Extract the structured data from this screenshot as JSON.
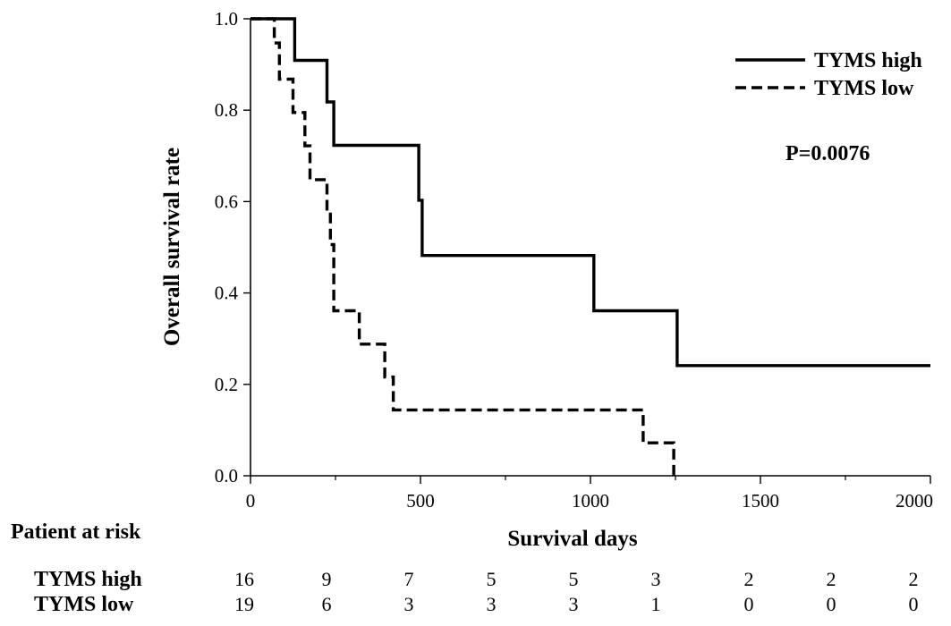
{
  "chart_data": {
    "type": "line",
    "subtype": "kaplan-meier",
    "xlabel": "Survival days",
    "ylabel": "Overall survival rate",
    "xlim": [
      0,
      2000
    ],
    "ylim": [
      0.0,
      1.0
    ],
    "xticks": [
      0,
      500,
      1000,
      1500,
      2000
    ],
    "yticks": [
      "0.0",
      "0.2",
      "0.4",
      "0.6",
      "0.8",
      "1.0"
    ],
    "grid": false,
    "legend_position": "top-right",
    "annotation": "P=0.0076",
    "series": [
      {
        "name": "TYMS high",
        "line_style": "solid",
        "color": "#000000",
        "points": [
          [
            0,
            1.0
          ],
          [
            130,
            1.0
          ],
          [
            130,
            0.909
          ],
          [
            225,
            0.909
          ],
          [
            225,
            0.818
          ],
          [
            245,
            0.818
          ],
          [
            245,
            0.723
          ],
          [
            495,
            0.723
          ],
          [
            495,
            0.603
          ],
          [
            505,
            0.603
          ],
          [
            505,
            0.482
          ],
          [
            1010,
            0.482
          ],
          [
            1010,
            0.361
          ],
          [
            1255,
            0.361
          ],
          [
            1255,
            0.241
          ],
          [
            2000,
            0.241
          ]
        ]
      },
      {
        "name": "TYMS low",
        "line_style": "dashed",
        "color": "#000000",
        "points": [
          [
            0,
            1.0
          ],
          [
            70,
            1.0
          ],
          [
            70,
            0.947
          ],
          [
            85,
            0.947
          ],
          [
            85,
            0.868
          ],
          [
            125,
            0.868
          ],
          [
            125,
            0.795
          ],
          [
            160,
            0.795
          ],
          [
            160,
            0.722
          ],
          [
            175,
            0.722
          ],
          [
            175,
            0.648
          ],
          [
            225,
            0.648
          ],
          [
            225,
            0.578
          ],
          [
            235,
            0.578
          ],
          [
            235,
            0.506
          ],
          [
            245,
            0.506
          ],
          [
            245,
            0.361
          ],
          [
            320,
            0.361
          ],
          [
            320,
            0.288
          ],
          [
            395,
            0.288
          ],
          [
            395,
            0.216
          ],
          [
            420,
            0.216
          ],
          [
            420,
            0.144
          ],
          [
            1155,
            0.144
          ],
          [
            1155,
            0.072
          ],
          [
            1245,
            0.072
          ],
          [
            1245,
            0.0
          ]
        ]
      }
    ]
  },
  "risk_table": {
    "title": "Patient at risk",
    "times": [
      0,
      250,
      500,
      750,
      1000,
      1250,
      1500,
      1750,
      2000
    ],
    "rows": [
      {
        "label": "TYMS high",
        "values": [
          "16",
          "9",
          "7",
          "5",
          "5",
          "3",
          "2",
          "2",
          "2"
        ]
      },
      {
        "label": "TYMS low",
        "values": [
          "19",
          "6",
          "3",
          "3",
          "3",
          "1",
          "0",
          "0",
          "0"
        ]
      }
    ]
  }
}
